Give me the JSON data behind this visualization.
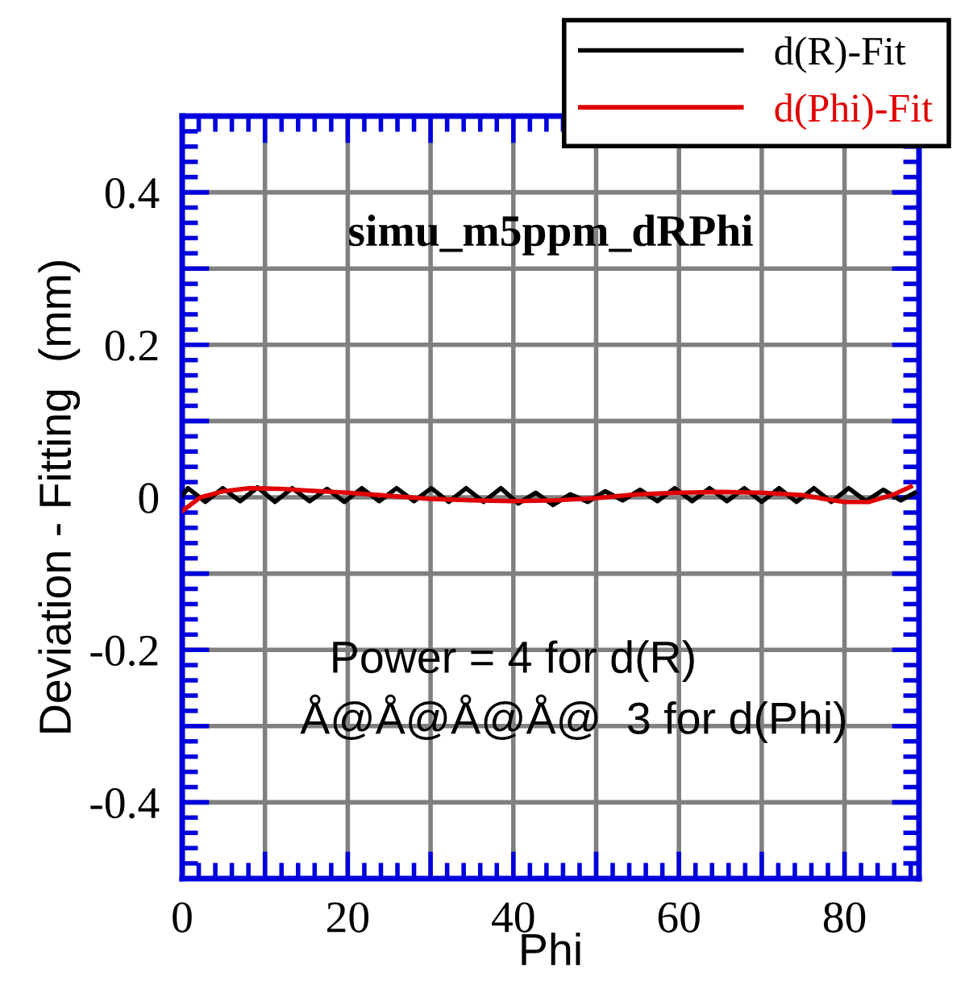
{
  "chart_data": {
    "type": "line",
    "title": "simu_m5ppm_dRPhi",
    "xlabel": "Phi",
    "ylabel": "Deviation - Fitting  (mm)",
    "xlim": [
      0,
      89
    ],
    "ylim": [
      -0.5,
      0.5
    ],
    "xticks": [
      0,
      {
        "value": 10,
        "label": null
      },
      20,
      {
        "value": 30,
        "label": null
      },
      40,
      {
        "value": 50,
        "label": null
      },
      60,
      {
        "value": 70,
        "label": null
      },
      80
    ],
    "yticks": [
      {
        "value": -0.5,
        "label": null
      },
      -0.4,
      {
        "value": -0.3,
        "label": null
      },
      -0.2,
      {
        "value": -0.1,
        "label": null
      },
      0,
      {
        "value": 0.1,
        "label": null
      },
      0.2,
      {
        "value": 0.3,
        "label": null
      },
      0.4,
      {
        "value": 0.5,
        "label": null
      }
    ],
    "grid": true,
    "legend": "top right",
    "line_style": "solid",
    "annotations": [
      "Power = 4 for d(R)",
      "Å@Å@Å@Å@  3 for d(Phi)"
    ],
    "series": [
      {
        "name": "d(R)-Fit",
        "color": "#000000",
        "x": [
          0,
          0.7,
          2.8,
          4.9,
          7.0,
          9.1,
          11.2,
          13.3,
          15.4,
          17.5,
          19.6,
          21.7,
          23.8,
          25.9,
          28.0,
          30.1,
          32.2,
          34.3,
          36.4,
          38.5,
          40.6,
          42.7,
          44.8,
          46.9,
          49.0,
          51.1,
          53.2,
          55.3,
          57.4,
          59.5,
          61.6,
          63.7,
          65.8,
          67.9,
          70.0,
          72.1,
          74.2,
          76.3,
          78.4,
          80.5,
          82.6,
          84.7,
          86.8,
          88.5
        ],
        "values": [
          0.002,
          0.012,
          -0.006,
          0.012,
          -0.005,
          0.013,
          -0.006,
          0.012,
          -0.005,
          0.011,
          -0.006,
          0.012,
          -0.005,
          0.012,
          -0.005,
          0.012,
          -0.006,
          0.012,
          -0.006,
          0.012,
          -0.008,
          0.006,
          -0.01,
          0.004,
          -0.006,
          0.008,
          -0.004,
          0.01,
          -0.005,
          0.012,
          -0.005,
          0.012,
          -0.005,
          0.012,
          -0.006,
          0.012,
          -0.006,
          0.012,
          -0.006,
          0.012,
          -0.005,
          0.01,
          -0.004,
          0.006
        ]
      },
      {
        "name": "d(Phi)-Fit",
        "color": "#e00000",
        "x": [
          0,
          2.2,
          5,
          8,
          12,
          15,
          20,
          25,
          30,
          35,
          40,
          45,
          50,
          55,
          60,
          65,
          70,
          75,
          78,
          80,
          83,
          86,
          88
        ],
        "values": [
          -0.018,
          0,
          0.008,
          0.012,
          0.011,
          0.009,
          0.006,
          0.002,
          -0.002,
          -0.004,
          -0.005,
          -0.004,
          -0.001,
          0.004,
          0.006,
          0.007,
          0.006,
          0.003,
          -0.003,
          -0.006,
          -0.006,
          0.004,
          0.014
        ]
      }
    ]
  }
}
